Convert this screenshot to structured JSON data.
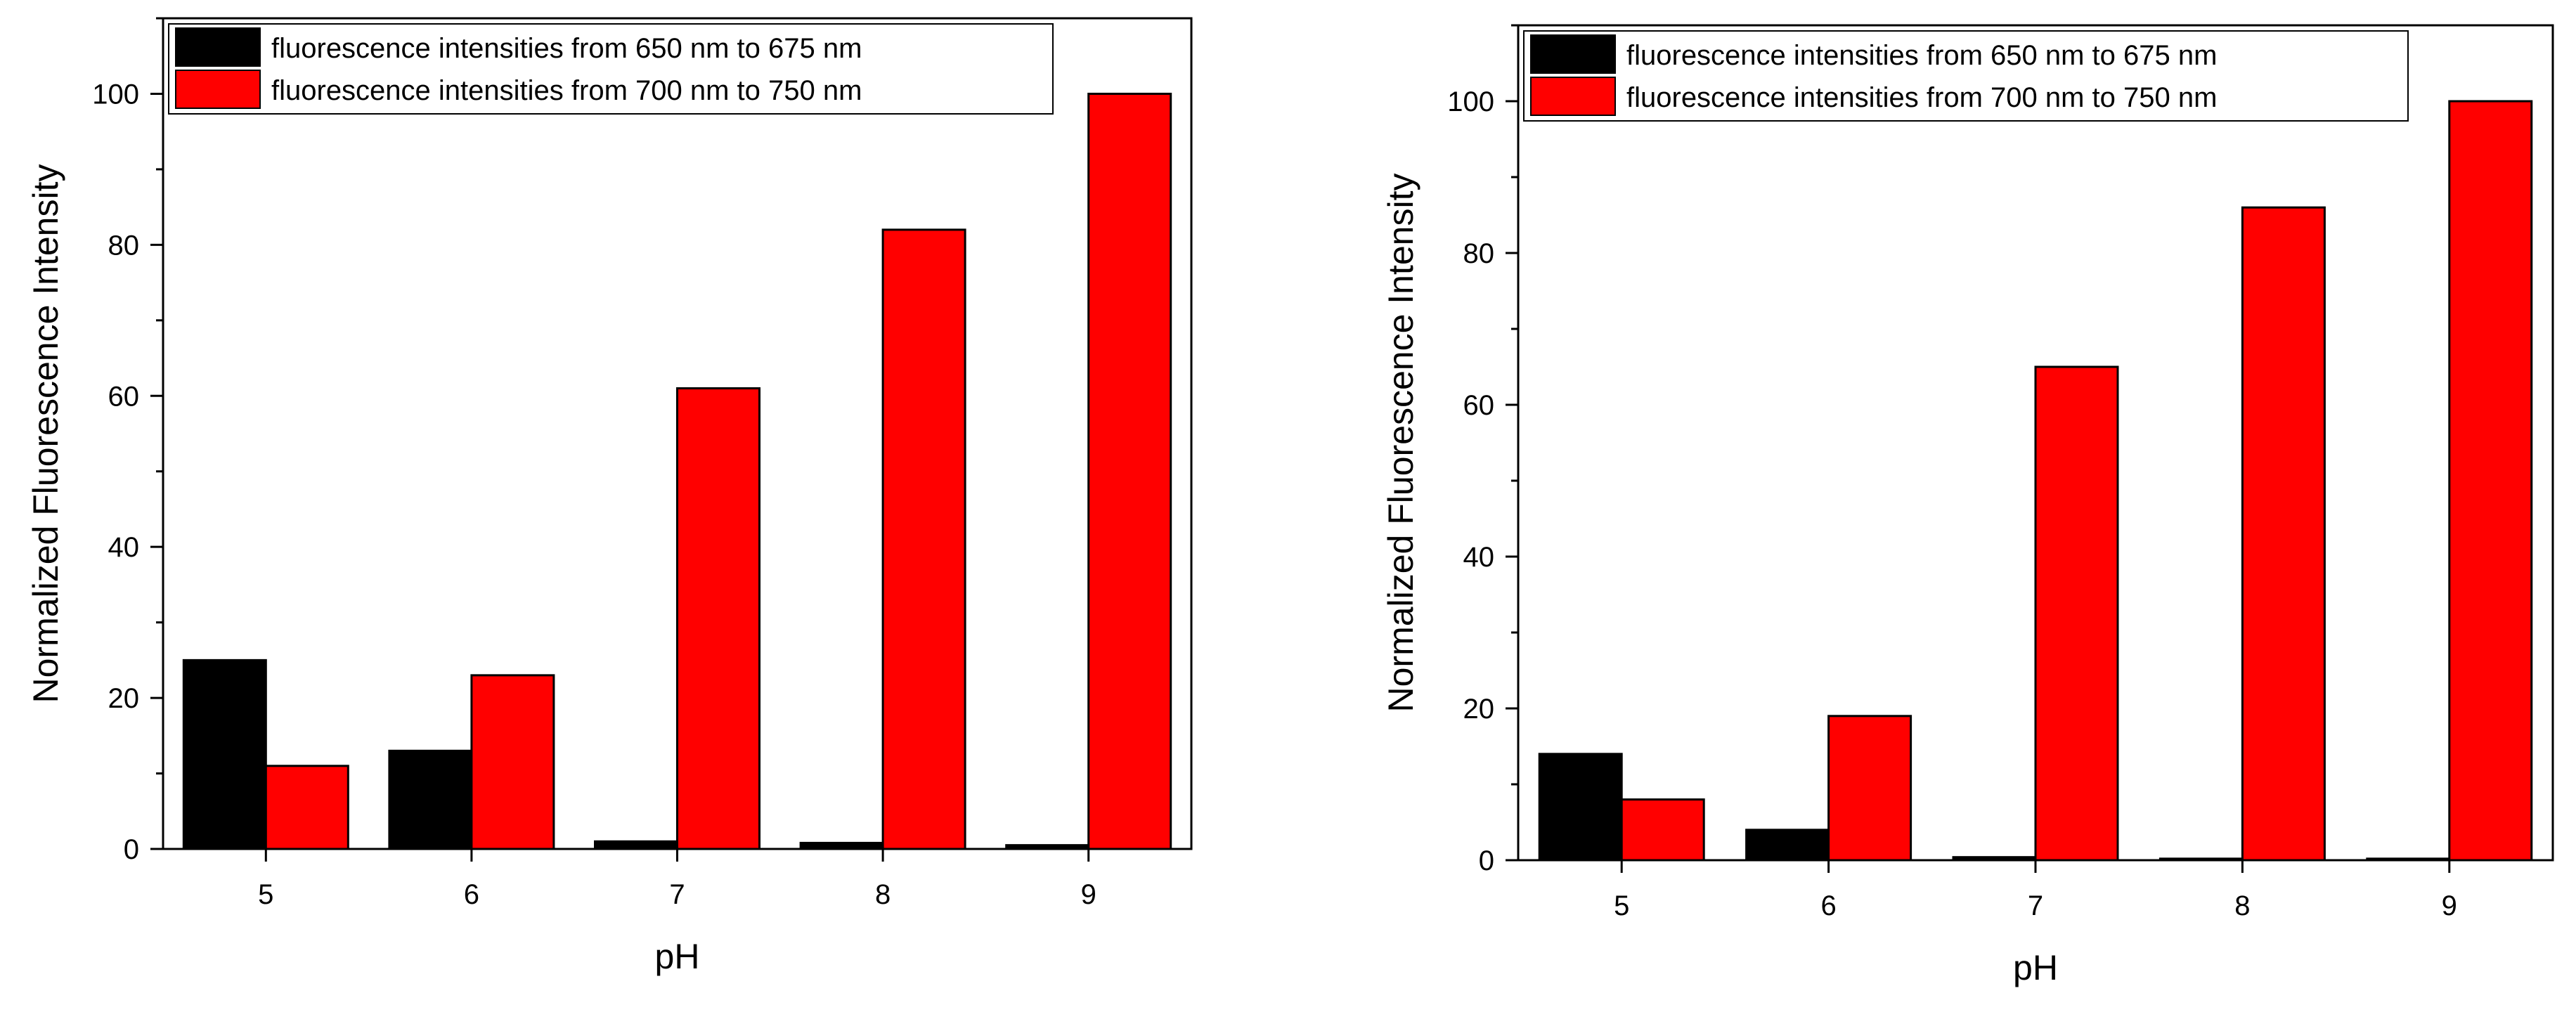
{
  "chart_data": [
    {
      "type": "bar",
      "xlabel": "pH",
      "ylabel": "Normalized Fluorescence Intensity",
      "categories": [
        "5",
        "6",
        "7",
        "8",
        "9"
      ],
      "ylim": [
        0,
        110
      ],
      "yticks": [
        0,
        20,
        40,
        60,
        80,
        100
      ],
      "y_minor_step": 10,
      "grid": false,
      "legend_position": "top-left",
      "series": [
        {
          "name": "fluorescence intensities from 650 nm to 675 nm",
          "color": "#000000",
          "values": [
            25,
            13,
            1,
            0.8,
            0.5
          ]
        },
        {
          "name": "fluorescence intensities from 700 nm to 750 nm",
          "color": "#ff0000",
          "values": [
            11,
            23,
            61,
            82,
            100
          ]
        }
      ]
    },
    {
      "type": "bar",
      "xlabel": "pH",
      "ylabel": "Normalized Fluorescence Intensity",
      "categories": [
        "5",
        "6",
        "7",
        "8",
        "9"
      ],
      "ylim": [
        0,
        110
      ],
      "yticks": [
        0,
        20,
        40,
        60,
        80,
        100
      ],
      "y_minor_step": 10,
      "grid": false,
      "legend_position": "top-left",
      "series": [
        {
          "name": "fluorescence intensities from 650 nm to 675 nm",
          "color": "#000000",
          "values": [
            14,
            4,
            0.4,
            0.2,
            0.2
          ]
        },
        {
          "name": "fluorescence intensities from 700 nm to 750 nm",
          "color": "#ff0000",
          "values": [
            8,
            19,
            65,
            86,
            100
          ]
        }
      ]
    }
  ]
}
